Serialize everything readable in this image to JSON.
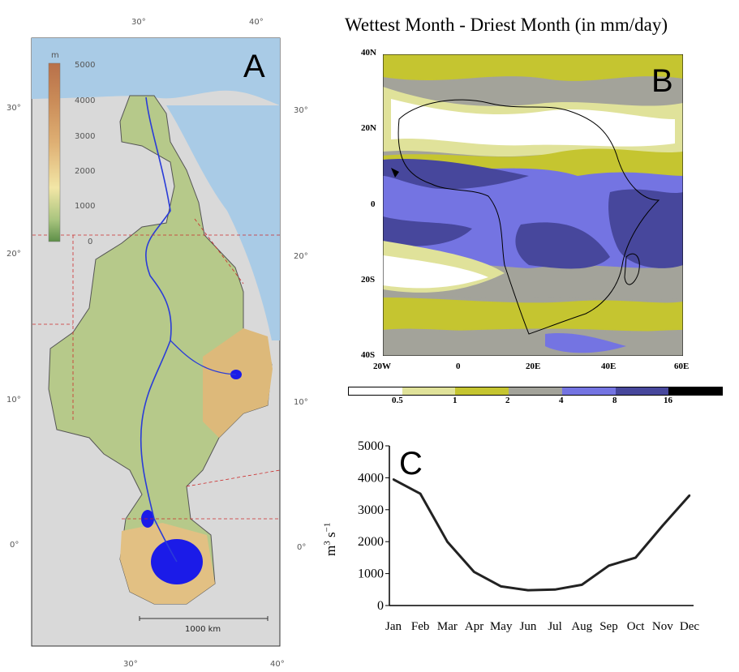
{
  "panel_a": {
    "letter": "A",
    "legend_unit": "m",
    "legend_ticks": [
      "5000",
      "4000",
      "3000",
      "2000",
      "1000",
      "0"
    ],
    "top_ticks": [
      "30°",
      "40°"
    ],
    "bottom_ticks": [
      "30°",
      "40°"
    ],
    "left_ticks": [
      "30°",
      "20°",
      "10°",
      "0°"
    ],
    "right_ticks": [
      "30°",
      "20°",
      "10°",
      "0°"
    ],
    "scale_bar_label": "1000 km"
  },
  "panel_b": {
    "title": "Wettest Month - Driest Month (in mm/day)",
    "letter": "B",
    "lat_ticks": [
      "40N",
      "20N",
      "0",
      "20S",
      "40S"
    ],
    "lon_ticks": [
      "20W",
      "0",
      "20E",
      "40E",
      "60E"
    ],
    "colorbar": {
      "ticks": [
        "0.5",
        "1",
        "2",
        "4",
        "8",
        "16"
      ],
      "colors": [
        "#ffffff",
        "#e0e29a",
        "#c5c530",
        "#a3a39a",
        "#7474e2",
        "#47479c",
        "#000000"
      ]
    }
  },
  "panel_c": {
    "letter": "C",
    "ylabel_main": "m",
    "ylabel_sup1": "3",
    "ylabel_mid": " s",
    "ylabel_sup2": "−1",
    "y_ticks": [
      "5000",
      "4000",
      "3000",
      "2000",
      "1000",
      "0"
    ]
  },
  "chart_data": {
    "type": "line",
    "categories": [
      "Jan",
      "Feb",
      "Mar",
      "Apr",
      "May",
      "Jun",
      "Jul",
      "Aug",
      "Sep",
      "Oct",
      "Nov",
      "Dec"
    ],
    "series": [
      {
        "values": [
          3950,
          3500,
          2000,
          1050,
          600,
          480,
          500,
          650,
          1250,
          1500,
          2500,
          3450
        ]
      }
    ],
    "ylim": [
      0,
      5000
    ],
    "xlabel": "",
    "ylabel": "m3 s−1",
    "grid": false,
    "line_color": "#222222"
  }
}
